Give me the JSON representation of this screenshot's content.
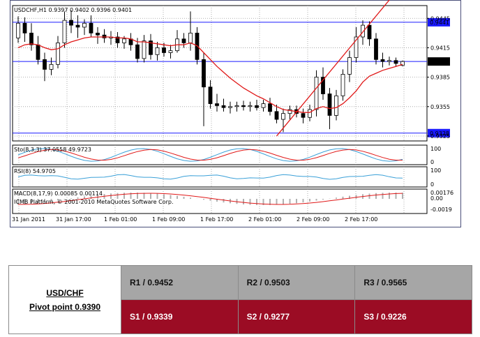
{
  "chart_data": {
    "type": "candlestick",
    "symbol_header": "USDCHF,H1  0.9397 0.9402 0.9396 0.9401",
    "price_ticks": [
      "0.9445",
      "0.9415",
      "0.9385",
      "0.9355",
      "0.9325"
    ],
    "levels": [
      {
        "label": "0.9441",
        "value": 0.9441
      },
      {
        "label": "0.9401",
        "value": 0.9401
      },
      {
        "label": "0.9328",
        "value": 0.9328
      }
    ],
    "time_labels": [
      "31 Jan 2011",
      "31 Jan 17:00",
      "1 Feb 01:00",
      "1 Feb 09:00",
      "1 Feb 17:00",
      "2 Feb 01:00",
      "2 Feb 09:00",
      "2 Feb 17:00"
    ],
    "stoch": {
      "label": "Sto(8,3,3) 37.0558 49.9723",
      "ticks": [
        "100",
        "0"
      ]
    },
    "rsi": {
      "label": "RSI(8) 54.9705",
      "ticks": [
        "100",
        "0"
      ]
    },
    "macd": {
      "label": "MACD(8,17,9) 0.00085 0.00114",
      "ticks": [
        "0.00176",
        "0.00",
        "-0.0019"
      ]
    },
    "copyright": "ICMB Platform, © 2001-2010 MetaQuotes Software Corp.",
    "candles": [
      [
        0.9425,
        0.9447,
        0.942,
        0.944
      ],
      [
        0.944,
        0.9446,
        0.9421,
        0.943
      ],
      [
        0.943,
        0.944,
        0.9412,
        0.9418
      ],
      [
        0.9418,
        0.9427,
        0.9398,
        0.9403
      ],
      [
        0.9403,
        0.941,
        0.9381,
        0.9393
      ],
      [
        0.9393,
        0.9405,
        0.9387,
        0.9398
      ],
      [
        0.9398,
        0.9427,
        0.9394,
        0.942
      ],
      [
        0.942,
        0.9452,
        0.9415,
        0.9443
      ],
      [
        0.9443,
        0.9453,
        0.943,
        0.9438
      ],
      [
        0.9438,
        0.9448,
        0.9425,
        0.9436
      ],
      [
        0.9436,
        0.9444,
        0.9428,
        0.944
      ],
      [
        0.944,
        0.9448,
        0.9426,
        0.943
      ],
      [
        0.943,
        0.9436,
        0.9419,
        0.9428
      ],
      [
        0.9428,
        0.9434,
        0.942,
        0.9425
      ],
      [
        0.9425,
        0.9432,
        0.9418,
        0.9426
      ],
      [
        0.9426,
        0.9431,
        0.9415,
        0.942
      ],
      [
        0.942,
        0.9427,
        0.9414,
        0.9424
      ],
      [
        0.9424,
        0.943,
        0.9412,
        0.9418
      ],
      [
        0.9418,
        0.9425,
        0.94,
        0.9404
      ],
      [
        0.9404,
        0.9428,
        0.94,
        0.9422
      ],
      [
        0.9422,
        0.9429,
        0.9403,
        0.9408
      ],
      [
        0.9408,
        0.9421,
        0.9402,
        0.9415
      ],
      [
        0.9415,
        0.942,
        0.9406,
        0.941
      ],
      [
        0.941,
        0.9418,
        0.9404,
        0.9412
      ],
      [
        0.9412,
        0.9433,
        0.941,
        0.9424
      ],
      [
        0.9424,
        0.943,
        0.9415,
        0.942
      ],
      [
        0.942,
        0.9452,
        0.9412,
        0.943
      ],
      [
        0.943,
        0.9436,
        0.9398,
        0.9403
      ],
      [
        0.9403,
        0.941,
        0.9335,
        0.9375
      ],
      [
        0.9375,
        0.9382,
        0.9353,
        0.9358
      ],
      [
        0.9358,
        0.9368,
        0.935,
        0.9356
      ],
      [
        0.9356,
        0.9363,
        0.935,
        0.9354
      ],
      [
        0.9354,
        0.936,
        0.9348,
        0.9355
      ],
      [
        0.9355,
        0.936,
        0.935,
        0.9356
      ],
      [
        0.9356,
        0.9361,
        0.9351,
        0.9355
      ],
      [
        0.9355,
        0.936,
        0.935,
        0.9356
      ],
      [
        0.9356,
        0.9362,
        0.9351,
        0.9354
      ],
      [
        0.9354,
        0.9362,
        0.935,
        0.9358
      ],
      [
        0.9358,
        0.9364,
        0.9346,
        0.935
      ],
      [
        0.935,
        0.9357,
        0.9338,
        0.9342
      ],
      [
        0.9342,
        0.9353,
        0.9329,
        0.9348
      ],
      [
        0.9348,
        0.9356,
        0.9342,
        0.9352
      ],
      [
        0.9352,
        0.9356,
        0.9344,
        0.9348
      ],
      [
        0.9348,
        0.9353,
        0.9338,
        0.9344
      ],
      [
        0.9344,
        0.9357,
        0.934,
        0.9352
      ],
      [
        0.9352,
        0.9392,
        0.9345,
        0.9385
      ],
      [
        0.9385,
        0.9395,
        0.9362,
        0.9368
      ],
      [
        0.9368,
        0.9374,
        0.9332,
        0.9346
      ],
      [
        0.9346,
        0.9372,
        0.9341,
        0.9366
      ],
      [
        0.9366,
        0.9393,
        0.9361,
        0.9388
      ],
      [
        0.9388,
        0.9412,
        0.938,
        0.9405
      ],
      [
        0.9405,
        0.9436,
        0.94,
        0.9426
      ],
      [
        0.9426,
        0.9443,
        0.9418,
        0.9438
      ],
      [
        0.9438,
        0.9442,
        0.9417,
        0.9424
      ],
      [
        0.9424,
        0.943,
        0.9398,
        0.9403
      ],
      [
        0.9403,
        0.941,
        0.9395,
        0.9401
      ],
      [
        0.9401,
        0.9406,
        0.9397,
        0.9402
      ],
      [
        0.9402,
        0.9405,
        0.9396,
        0.9399
      ],
      [
        0.9397,
        0.9402,
        0.9396,
        0.9401
      ]
    ],
    "ma": [
      0.9415,
      0.9418,
      0.9419,
      0.9418,
      0.9415,
      0.9413,
      0.9414,
      0.9418,
      0.9421,
      0.9423,
      0.9425,
      0.9426,
      0.9426,
      0.9426,
      0.9426,
      0.9425,
      0.9425,
      0.9424,
      0.9421,
      0.9421,
      0.942,
      0.9419,
      0.9418,
      0.9417,
      0.9418,
      0.9418,
      0.942,
      0.9417,
      0.941,
      0.9403,
      0.9396,
      0.939,
      0.9384,
      0.9379,
      0.9374,
      0.937,
      0.9366,
      0.9363,
      0.9359,
      0.9355,
      0.9352,
      0.9351,
      0.935,
      0.9349,
      0.9349,
      0.9353,
      0.9355,
      0.9353,
      0.9354,
      0.9358,
      0.9364,
      0.9371,
      0.938,
      0.9386,
      0.9389,
      0.9392,
      0.9394,
      0.9396,
      0.9398
    ],
    "trendline": {
      "from": [
        39,
        0.9325
      ],
      "to": [
        58,
        0.948
      ]
    },
    "pivot": {
      "pair": "USD/CHF",
      "pivot_text": "Pivot point 0.9390",
      "resistance": [
        "R1 / 0.9452",
        "R2 / 0.9503",
        "R3 / 0.9565"
      ],
      "support": [
        "S1 / 0.9339",
        "S2 / 0.9277",
        "S3 / 0.9226"
      ]
    },
    "colors": {
      "frame": "#4a4f7a",
      "level_line": "#1a1aff",
      "ma": "#e01818",
      "trendline": "#e01818",
      "stoch_main": "#3aa0d8",
      "stoch_signal": "#e01818",
      "rsi": "#3aa0d8",
      "macd_hist": "#b0b0b0",
      "macd_signal": "#e01818",
      "resist_bg": "#a6a6a6",
      "support_bg": "#9b0c24"
    }
  }
}
